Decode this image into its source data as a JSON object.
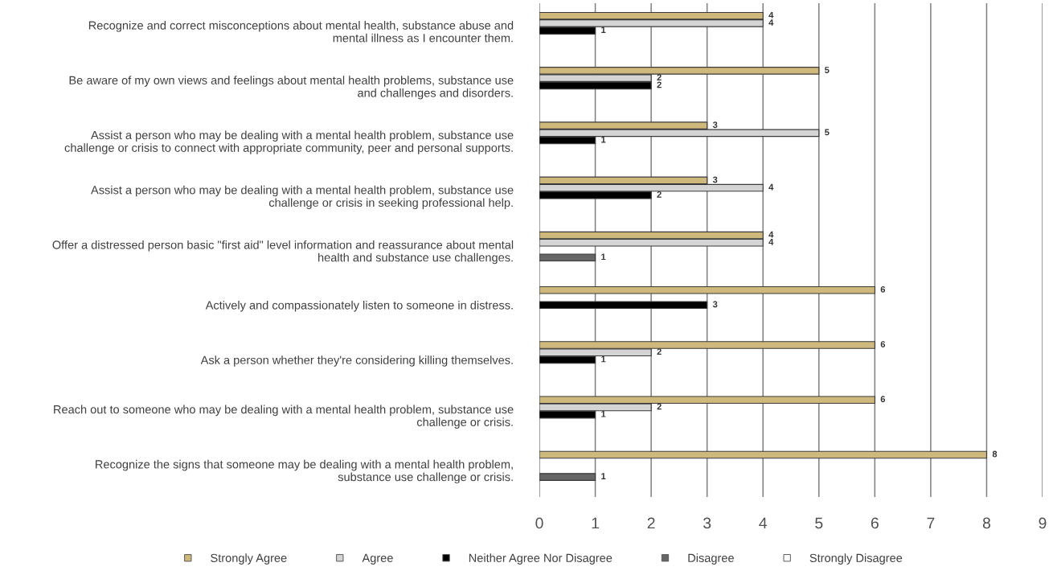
{
  "chart_data": {
    "type": "bar",
    "orientation": "horizontal",
    "categories": [
      "Recognize and correct misconceptions about mental health, substance abuse and\nmental illness as I encounter them.",
      "Be aware of my own views and feelings about mental health problems, substance use\nand challenges and disorders.",
      "Assist a person who may be dealing with a mental health problem, substance use\nchallenge or crisis to connect with appropriate community, peer and personal supports.",
      "Assist a person who may be dealing with a mental health problem, substance use\nchallenge or crisis in seeking professional help.",
      "Offer a distressed person basic \"first aid\" level information and reassurance about mental\nhealth and substance use challenges.",
      "Actively and compassionately listen to someone in distress.",
      "Ask a person whether they're considering killing themselves.",
      "Reach out to someone who may be dealing with a mental health problem, substance use\nchallenge or crisis.",
      "Recognize the signs that someone may be dealing with a mental health problem,\nsubstance use challenge or crisis."
    ],
    "series": [
      {
        "name": "Strongly Agree",
        "color": "#cfb87c",
        "values": [
          4,
          5,
          3,
          3,
          4,
          6,
          6,
          6,
          8
        ],
        "value_labels": [
          "4",
          "5",
          "3",
          "3",
          "4",
          "6",
          "6",
          "6",
          "8"
        ]
      },
      {
        "name": "Agree",
        "color": "#d4d4d4",
        "values": [
          4,
          2,
          5,
          4,
          4,
          0,
          2,
          2,
          0
        ],
        "value_labels": [
          "4",
          "2",
          "5",
          "4",
          "4",
          null,
          "2",
          "2",
          null
        ]
      },
      {
        "name": "Neither Agree Nor Disagree",
        "color": "#000000",
        "values": [
          1,
          2,
          1,
          2,
          0,
          3,
          1,
          1,
          0
        ],
        "value_labels": [
          "1",
          "2",
          "1",
          "2",
          null,
          "3",
          "1",
          "1",
          null
        ]
      },
      {
        "name": "Disagree",
        "color": "#666666",
        "values": [
          0,
          0,
          0,
          0,
          1,
          0,
          0,
          0,
          1
        ],
        "value_labels": [
          null,
          null,
          null,
          null,
          "1",
          null,
          null,
          null,
          "1"
        ]
      },
      {
        "name": "Strongly Disagree",
        "color": "#ffffff",
        "values": [
          0,
          0,
          0,
          0,
          0,
          0,
          0,
          0,
          0
        ],
        "value_labels": [
          null,
          null,
          null,
          null,
          null,
          null,
          null,
          null,
          null
        ]
      }
    ],
    "xlim": [
      0,
      9
    ],
    "xticks": [
      0,
      1,
      2,
      3,
      4,
      5,
      6,
      7,
      8,
      9
    ],
    "grid": "x",
    "legend": "bottom"
  }
}
